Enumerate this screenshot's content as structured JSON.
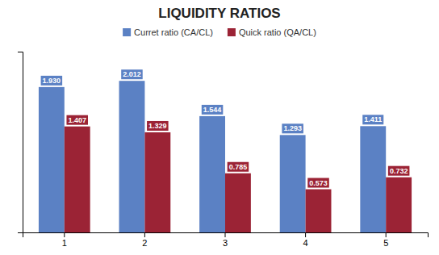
{
  "chart_data": {
    "type": "bar",
    "title": "LIQUIDITY RATIOS",
    "categories": [
      "1",
      "2",
      "3",
      "4",
      "5"
    ],
    "series": [
      {
        "name": "Curret ratio (CA/CL)",
        "color": "#5b81c4",
        "values": [
          1.93,
          2.012,
          1.544,
          1.293,
          1.411
        ],
        "value_labels": [
          "1.930",
          "2.012",
          "1.544",
          "1.293",
          "1.411"
        ]
      },
      {
        "name": "Quick ratio (QA/CL)",
        "color": "#9b2335",
        "values": [
          1.407,
          1.329,
          0.785,
          0.573,
          0.732
        ],
        "value_labels": [
          "1.407",
          "1.329",
          "0.785",
          "0.573",
          "0.732"
        ]
      }
    ],
    "ylim": [
      0,
      2.4
    ],
    "data_labels": true,
    "tick_labels": "x",
    "grid": false,
    "legend": "top"
  }
}
